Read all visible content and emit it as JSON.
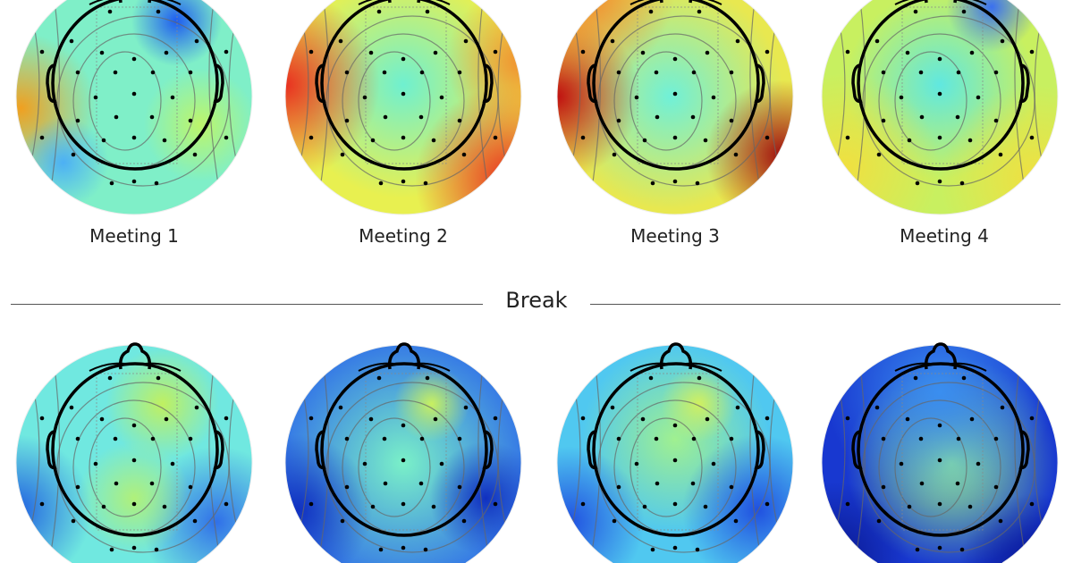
{
  "top_row": [
    {
      "label": "Meeting 1",
      "base_color": "#7fefc8",
      "blobs": [
        [
          "#1e5cf0",
          0.68,
          0.18,
          0.12
        ],
        [
          "#f0a020",
          0.02,
          0.55,
          0.2
        ],
        [
          "#4cb0f5",
          0.2,
          0.78,
          0.12
        ],
        [
          "#bdf56a",
          0.78,
          0.62,
          0.15
        ]
      ]
    },
    {
      "label": "Meeting 2",
      "base_color": "#e8f050",
      "blobs": [
        [
          "#6ff0d0",
          0.5,
          0.45,
          0.3
        ],
        [
          "#e83020",
          0.0,
          0.45,
          0.25
        ],
        [
          "#e83020",
          0.95,
          0.85,
          0.25
        ],
        [
          "#f09030",
          1.0,
          0.35,
          0.2
        ]
      ]
    },
    {
      "label": "Meeting 3",
      "base_color": "#e8e850",
      "blobs": [
        [
          "#70f0d8",
          0.48,
          0.5,
          0.3
        ],
        [
          "#c01010",
          0.0,
          0.5,
          0.22
        ],
        [
          "#a01010",
          0.95,
          0.75,
          0.2
        ],
        [
          "#f08030",
          0.1,
          0.05,
          0.25
        ]
      ]
    },
    {
      "label": "Meeting 4",
      "base_color": "#c8f060",
      "blobs": [
        [
          "#60e8e0",
          0.5,
          0.45,
          0.25
        ],
        [
          "#3a70f0",
          0.72,
          0.12,
          0.12
        ],
        [
          "#f0e040",
          0.1,
          0.8,
          0.25
        ],
        [
          "#f0e040",
          0.9,
          0.85,
          0.25
        ]
      ]
    }
  ],
  "break_label": "Break",
  "bottom_row": [
    {
      "base_color": "#70e8e0",
      "blobs": [
        [
          "#c0f060",
          0.62,
          0.25,
          0.15
        ],
        [
          "#2060e0",
          0.0,
          0.7,
          0.2
        ],
        [
          "#3070e8",
          0.85,
          0.75,
          0.2
        ],
        [
          "#b0f07a",
          0.5,
          0.65,
          0.15
        ]
      ]
    },
    {
      "base_color": "#2f6ee8",
      "blobs": [
        [
          "#7af0c8",
          0.5,
          0.5,
          0.35
        ],
        [
          "#c8f060",
          0.62,
          0.25,
          0.1
        ],
        [
          "#1030c0",
          0.05,
          0.7,
          0.2
        ],
        [
          "#1030c0",
          0.85,
          0.65,
          0.15
        ]
      ]
    },
    {
      "base_color": "#50c8f0",
      "blobs": [
        [
          "#a0f090",
          0.5,
          0.4,
          0.25
        ],
        [
          "#d0f060",
          0.6,
          0.25,
          0.1
        ],
        [
          "#2050e0",
          0.05,
          0.75,
          0.2
        ],
        [
          "#2050e0",
          0.85,
          0.7,
          0.2
        ]
      ]
    },
    {
      "base_color": "#1838d0",
      "blobs": [
        [
          "#9af090",
          0.55,
          0.5,
          0.28
        ],
        [
          "#3a8ef0",
          0.5,
          0.2,
          0.3
        ],
        [
          "#0a1890",
          0.05,
          0.9,
          0.2
        ],
        [
          "#0a1890",
          0.9,
          0.95,
          0.2
        ]
      ]
    }
  ]
}
